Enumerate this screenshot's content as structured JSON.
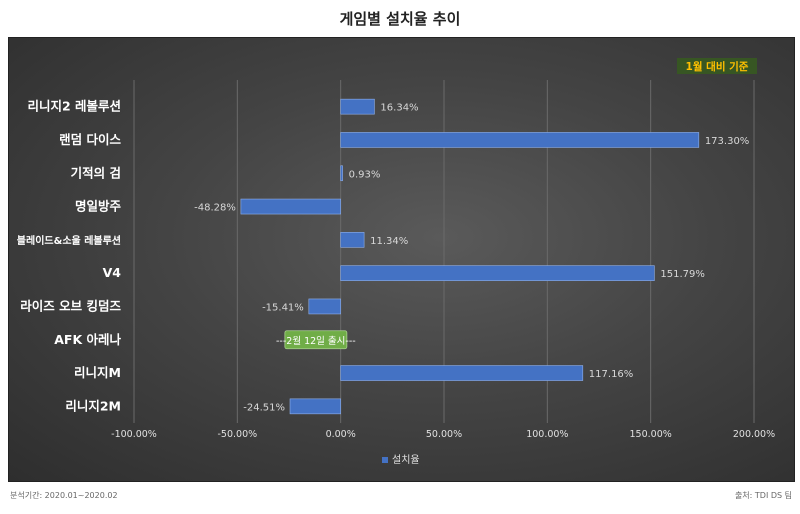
{
  "chart_data": {
    "type": "bar",
    "orientation": "horizontal",
    "title": "게임별 설치율 추이",
    "categories": [
      "리니지2 레볼루션",
      "랜덤 다이스",
      "기적의 검",
      "명일방주",
      "블레이드&소울 레볼루션",
      "V4",
      "라이즈 오브 킹덤즈",
      "AFK 아레나",
      "리니지M",
      "리니지2M"
    ],
    "series": [
      {
        "name": "설치율",
        "values": [
          16.34,
          173.3,
          0.93,
          -48.28,
          11.34,
          151.79,
          -15.41,
          null,
          117.16,
          -24.51
        ],
        "labels": [
          "16.34%",
          "173.30%",
          "0.93%",
          "-48.28%",
          "11.34%",
          "151.79%",
          "-15.41%",
          "",
          "117.16%",
          "-24.51%"
        ]
      }
    ],
    "xlim": [
      -100,
      200
    ],
    "xticks": [
      -100,
      -50,
      0,
      50,
      100,
      150,
      200
    ],
    "xtick_labels": [
      "-100.00%",
      "-50.00%",
      "0.00%",
      "50.00%",
      "100.00%",
      "150.00%",
      "200.00%"
    ],
    "grid": "vertical",
    "legend_position": "bottom",
    "annotations": {
      "basis": "1월 대비 기준",
      "release_note": "---2월 12일 출시---"
    },
    "colors": {
      "bar": "#4472c4",
      "background": "#3f3f3f",
      "category_text": "#ffffff",
      "basis_text": "#ffc000",
      "basis_bg": "#375623",
      "release_bg": "#70ad47"
    }
  },
  "footer": {
    "period": "분석기간: 2020.01~2020.02",
    "source": "출처: TDI DS 팀"
  }
}
